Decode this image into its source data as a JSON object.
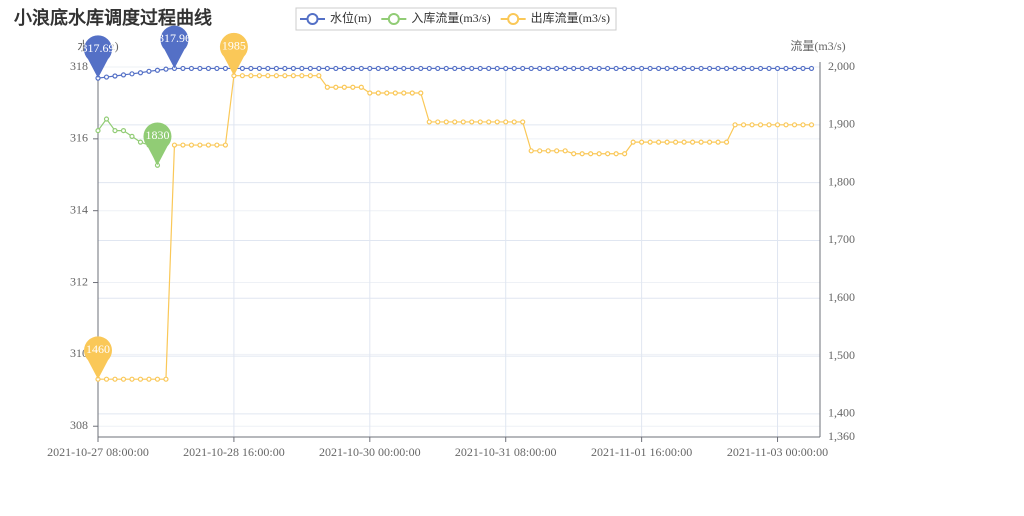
{
  "chart_data": {
    "type": "line",
    "title": "小浪底水库调度过程曲线",
    "y_label": "水位(m)",
    "y2_label": "流量(m3/s)",
    "x": [
      "2021-10-27 08:00:00",
      "2021-10-27 10:00:00",
      "2021-10-27 12:00:00",
      "2021-10-27 14:00:00",
      "2021-10-27 16:00:00",
      "2021-10-27 18:00:00",
      "2021-10-27 20:00:00",
      "2021-10-27 22:00:00",
      "2021-10-28 00:00:00",
      "2021-10-28 02:00:00",
      "2021-10-28 04:00:00",
      "2021-10-28 06:00:00",
      "2021-10-28 08:00:00",
      "2021-10-28 10:00:00",
      "2021-10-28 12:00:00",
      "2021-10-28 14:00:00",
      "2021-10-28 16:00:00",
      "2021-10-28 18:00:00",
      "2021-10-28 20:00:00",
      "2021-10-28 22:00:00",
      "2021-10-29 00:00:00",
      "2021-10-29 02:00:00",
      "2021-10-29 04:00:00",
      "2021-10-29 06:00:00",
      "2021-10-29 08:00:00",
      "2021-10-29 10:00:00",
      "2021-10-29 12:00:00",
      "2021-10-29 14:00:00",
      "2021-10-29 16:00:00",
      "2021-10-29 18:00:00",
      "2021-10-29 20:00:00",
      "2021-10-29 22:00:00",
      "2021-10-30 00:00:00",
      "2021-10-30 02:00:00",
      "2021-10-30 04:00:00",
      "2021-10-30 06:00:00",
      "2021-10-30 08:00:00",
      "2021-10-30 10:00:00",
      "2021-10-30 12:00:00",
      "2021-10-30 14:00:00",
      "2021-10-30 16:00:00",
      "2021-10-30 18:00:00",
      "2021-10-30 20:00:00",
      "2021-10-30 22:00:00",
      "2021-10-31 00:00:00",
      "2021-10-31 02:00:00",
      "2021-10-31 04:00:00",
      "2021-10-31 06:00:00",
      "2021-10-31 08:00:00",
      "2021-10-31 10:00:00",
      "2021-10-31 12:00:00",
      "2021-10-31 14:00:00",
      "2021-10-31 16:00:00",
      "2021-10-31 18:00:00",
      "2021-10-31 20:00:00",
      "2021-10-31 22:00:00",
      "2021-11-01 00:00:00",
      "2021-11-01 02:00:00",
      "2021-11-01 04:00:00",
      "2021-11-01 06:00:00",
      "2021-11-01 08:00:00",
      "2021-11-01 10:00:00",
      "2021-11-01 12:00:00",
      "2021-11-01 14:00:00",
      "2021-11-01 16:00:00",
      "2021-11-01 18:00:00",
      "2021-11-01 20:00:00",
      "2021-11-01 22:00:00",
      "2021-11-02 00:00:00",
      "2021-11-02 02:00:00",
      "2021-11-02 04:00:00",
      "2021-11-02 06:00:00",
      "2021-11-02 08:00:00",
      "2021-11-02 10:00:00",
      "2021-11-02 12:00:00",
      "2021-11-02 14:00:00",
      "2021-11-02 16:00:00",
      "2021-11-02 18:00:00",
      "2021-11-02 20:00:00",
      "2021-11-02 22:00:00",
      "2021-11-03 00:00:00",
      "2021-11-03 02:00:00",
      "2021-11-03 04:00:00",
      "2021-11-03 06:00:00",
      "2021-11-03 08:00:00"
    ],
    "xlim": [
      "2021-10-27 08:00:00",
      "2021-11-03 10:00:00"
    ],
    "xticks": [
      "2021-10-27 08:00:00",
      "2021-10-28 16:00:00",
      "2021-10-30 00:00:00",
      "2021-10-31 08:00:00",
      "2021-11-01 16:00:00",
      "2021-11-03 00:00:00"
    ],
    "ylim": [
      307.7,
      318
    ],
    "yticks": [
      308,
      310,
      312,
      314,
      316,
      318
    ],
    "y2lim": [
      1360,
      2000
    ],
    "y2ticks": [
      {
        "value": 1360,
        "label": "1,360"
      },
      {
        "value": 1400,
        "label": "1,400"
      },
      {
        "value": 1500,
        "label": "1,500"
      },
      {
        "value": 1600,
        "label": "1,600"
      },
      {
        "value": 1700,
        "label": "1,700"
      },
      {
        "value": 1800,
        "label": "1,800"
      },
      {
        "value": 1900,
        "label": "1,900"
      },
      {
        "value": 2000,
        "label": "2,000"
      }
    ],
    "grid": true,
    "legend": "top",
    "series": [
      {
        "name": "水位(m)",
        "color": "#5470c6",
        "axis": "y",
        "markPoint": [
          "max",
          "min"
        ],
        "values": [
          317.69,
          317.72,
          317.75,
          317.78,
          317.81,
          317.84,
          317.88,
          317.91,
          317.94,
          317.96,
          317.96,
          317.96,
          317.96,
          317.96,
          317.96,
          317.96,
          317.96,
          317.96,
          317.96,
          317.96,
          317.96,
          317.96,
          317.96,
          317.96,
          317.96,
          317.96,
          317.96,
          317.96,
          317.96,
          317.96,
          317.96,
          317.96,
          317.96,
          317.96,
          317.96,
          317.96,
          317.96,
          317.96,
          317.96,
          317.96,
          317.96,
          317.96,
          317.96,
          317.96,
          317.96,
          317.96,
          317.96,
          317.96,
          317.96,
          317.96,
          317.96,
          317.96,
          317.96,
          317.96,
          317.96,
          317.96,
          317.96,
          317.96,
          317.96,
          317.96,
          317.96,
          317.96,
          317.96,
          317.96,
          317.96,
          317.96,
          317.96,
          317.96,
          317.96,
          317.96,
          317.96,
          317.96,
          317.96,
          317.96,
          317.96,
          317.96,
          317.96,
          317.96,
          317.96,
          317.96,
          317.96,
          317.96,
          317.96,
          317.96,
          317.96
        ]
      },
      {
        "name": "入库流量(m3/s)",
        "color": "#91cc75",
        "axis": "y2",
        "markPoint": [
          "min"
        ],
        "values": [
          1890,
          1910,
          1890,
          1890,
          1880,
          1870,
          1865,
          1830,
          null,
          null,
          null,
          null,
          null,
          null,
          null,
          null,
          null,
          null,
          null,
          null,
          null,
          null,
          null,
          null,
          null,
          null,
          null,
          null,
          null,
          null,
          null,
          null,
          null,
          null,
          null,
          null,
          null,
          null,
          null,
          null,
          null,
          null,
          null,
          null,
          null,
          null,
          null,
          null,
          null,
          null,
          null,
          null,
          null,
          null,
          null,
          null,
          null,
          null,
          null,
          null,
          null,
          null,
          null,
          null,
          null,
          null,
          null,
          null,
          null,
          null,
          null,
          null,
          null,
          null,
          null,
          null,
          null,
          null,
          null,
          null,
          null,
          null,
          null,
          null,
          null
        ]
      },
      {
        "name": "出库流量(m3/s)",
        "color": "#fac858",
        "axis": "y2",
        "markPoint": [
          "max",
          "min"
        ],
        "values": [
          1460,
          1460,
          1460,
          1460,
          1460,
          1460,
          1460,
          1460,
          1460,
          1865,
          1865,
          1865,
          1865,
          1865,
          1865,
          1865,
          1985,
          1985,
          1985,
          1985,
          1985,
          1985,
          1985,
          1985,
          1985,
          1985,
          1985,
          1965,
          1965,
          1965,
          1965,
          1965,
          1955,
          1955,
          1955,
          1955,
          1955,
          1955,
          1955,
          1905,
          1905,
          1905,
          1905,
          1905,
          1905,
          1905,
          1905,
          1905,
          1905,
          1905,
          1905,
          1855,
          1855,
          1855,
          1855,
          1855,
          1850,
          1850,
          1850,
          1850,
          1850,
          1850,
          1850,
          1870,
          1870,
          1870,
          1870,
          1870,
          1870,
          1870,
          1870,
          1870,
          1870,
          1870,
          1870,
          1900,
          1900,
          1900,
          1900,
          1900,
          1900,
          1900,
          1900,
          1900,
          1900
        ]
      }
    ]
  }
}
